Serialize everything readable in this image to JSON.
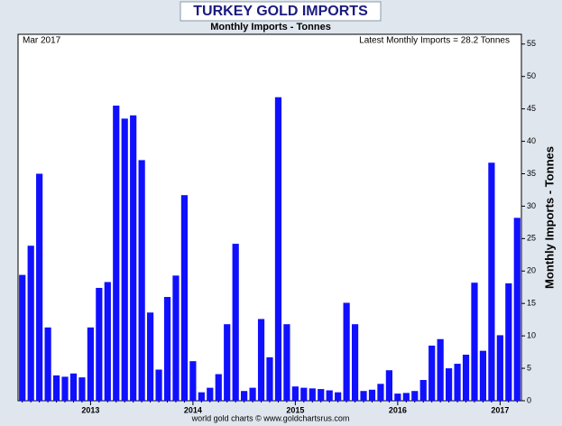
{
  "chart_data": {
    "type": "bar",
    "title": "TURKEY GOLD IMPORTS",
    "subtitle": "Monthly Imports - Tonnes",
    "date_label": "Mar 2017",
    "annotation": "Latest Monthly Imports = 28.2 Tonnes",
    "ylabel": "Monthly Imports - Tonnes",
    "footer": "world gold charts © www.goldchartsrus.com",
    "color": "#1010ff",
    "categories": [
      null,
      null,
      null,
      null,
      null,
      null,
      null,
      null,
      "2013",
      null,
      null,
      null,
      null,
      null,
      null,
      null,
      null,
      null,
      null,
      null,
      "2014",
      null,
      null,
      null,
      null,
      null,
      null,
      null,
      null,
      null,
      null,
      null,
      "2015",
      null,
      null,
      null,
      null,
      null,
      null,
      null,
      null,
      null,
      null,
      null,
      "2016",
      null,
      null,
      null,
      null,
      null,
      null,
      null,
      null,
      null,
      null,
      null,
      "2017",
      null,
      null
    ],
    "values": [
      19.4,
      23.9,
      35,
      11.3,
      3.9,
      3.7,
      4.2,
      3.6,
      11.3,
      17.4,
      18.3,
      45.5,
      43.5,
      44,
      37.1,
      13.6,
      4.8,
      16,
      19.3,
      31.7,
      6.1,
      1.3,
      2,
      4.1,
      11.8,
      24.2,
      1.5,
      2,
      12.6,
      6.7,
      46.8,
      11.8,
      2.2,
      2,
      1.9,
      1.8,
      1.6,
      1.3,
      15.1,
      11.8,
      1.5,
      1.7,
      2.6,
      4.7,
      1.1,
      1.2,
      1.5,
      3.2,
      8.5,
      9.5,
      5,
      5.7,
      7.1,
      18.2,
      7.7,
      36.7,
      10.1,
      18.1,
      28.2
    ],
    "ylim": [
      0,
      56.5
    ],
    "yticks": [
      0,
      5,
      10,
      15,
      20,
      25,
      30,
      35,
      40,
      45,
      50,
      55
    ],
    "grid": false
  }
}
